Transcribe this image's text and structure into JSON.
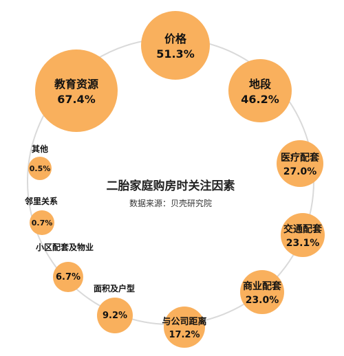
{
  "chart_data": {
    "type": "bubble",
    "title": "二胎家庭购房时关注因素",
    "subtitle": "数据来源：贝壳研究院",
    "unit": "%",
    "bubble_color": "#F9B05D",
    "ring_color": "#D9D9D9",
    "categories": [
      "价格",
      "地段",
      "医疗配套",
      "交通配套",
      "商业配套",
      "与公司距离",
      "面积及户型",
      "小区配套及物业",
      "邻里关系",
      "其他",
      "教育资源"
    ],
    "values": [
      51.3,
      46.2,
      27.0,
      23.1,
      23.0,
      17.2,
      9.2,
      6.7,
      0.7,
      0.5,
      67.4
    ],
    "value_labels": [
      "51.3%",
      "46.2%",
      "27.0%",
      "23.1%",
      "23.0%",
      "17.2%",
      "9.2%",
      "6.7%",
      "0.7%",
      "0.5%",
      "67.4%"
    ]
  }
}
